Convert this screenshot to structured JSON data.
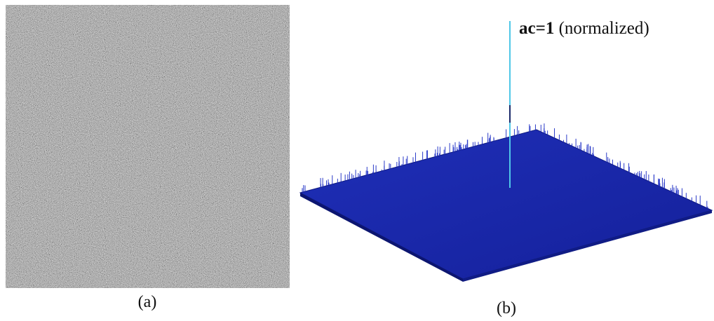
{
  "panels": [
    {
      "caption": "(a)"
    },
    {
      "caption": "(b)",
      "annotation": {
        "bold": "ac=1",
        "rest": "(normalized)"
      }
    }
  ]
}
